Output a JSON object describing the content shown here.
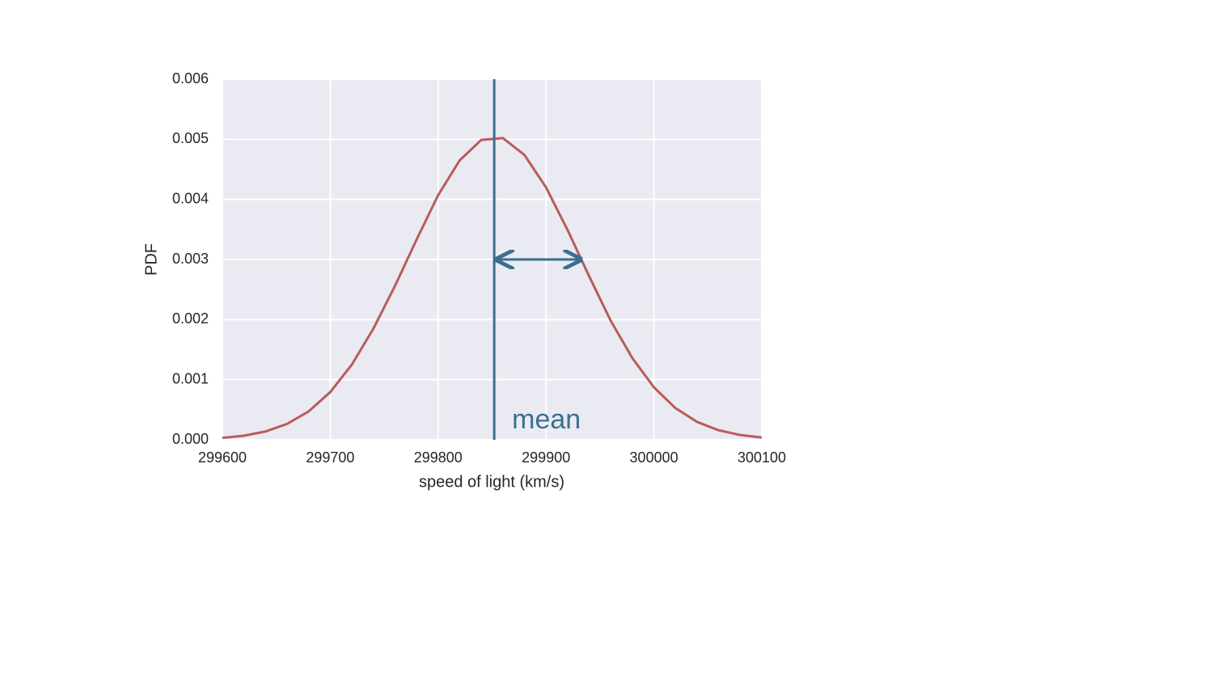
{
  "chart_data": {
    "type": "line",
    "xlabel": "speed of light (km/s)",
    "ylabel": "PDF",
    "x": [
      299600,
      299620,
      299640,
      299660,
      299680,
      299700,
      299720,
      299740,
      299760,
      299780,
      299800,
      299820,
      299840,
      299860,
      299880,
      299900,
      299920,
      299940,
      299960,
      299980,
      300000,
      300020,
      300040,
      300060,
      300080,
      300100
    ],
    "values": [
      3.12e-05,
      6.77e-05,
      0.000138,
      0.000264,
      0.000472,
      0.000793,
      0.00125,
      0.00185,
      0.00256,
      0.00333,
      0.00407,
      0.00465,
      0.00499,
      0.00502,
      0.00474,
      0.0042,
      0.00349,
      0.00272,
      0.00198,
      0.00136,
      0.000873,
      0.000526,
      0.000298,
      0.000158,
      7.85e-05,
      3.66e-05
    ],
    "color": "#b85c5c",
    "mean_line": {
      "x": 299852,
      "color": "#3a6f8f",
      "label": "mean"
    },
    "arrow": {
      "x": [
        299852,
        299932
      ],
      "y": 0.003
    },
    "xlim": [
      299600,
      300100
    ],
    "xticks": [
      299600,
      299700,
      299800,
      299900,
      300000,
      300100
    ],
    "ylim": [
      0,
      0.006
    ],
    "yticks": [
      {
        "value": 0,
        "label": "0.000"
      },
      0.001,
      0.002,
      0.003,
      0.004,
      0.005,
      0.006
    ],
    "grid": true,
    "background": "#eaeaf2"
  }
}
